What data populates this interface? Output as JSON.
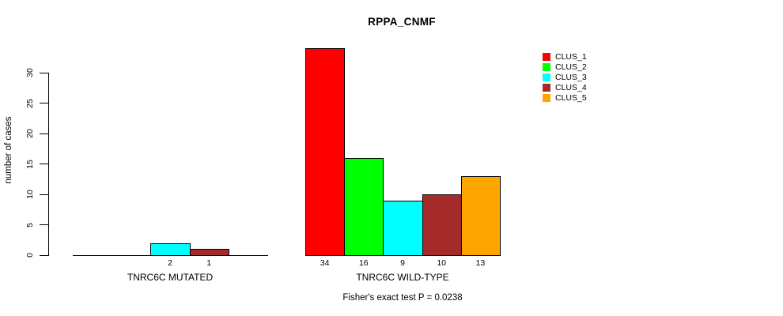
{
  "chart_data": {
    "type": "bar",
    "title": "RPPA_CNMF",
    "ylabel": "number of cases",
    "xlabel": "",
    "ylim": [
      0,
      34
    ],
    "yticks": [
      0,
      5,
      10,
      15,
      20,
      25,
      30
    ],
    "grid": false,
    "legend_position": "top-right",
    "series": [
      {
        "name": "CLUS_1",
        "color": "#ff0000"
      },
      {
        "name": "CLUS_2",
        "color": "#00ff00"
      },
      {
        "name": "CLUS_3",
        "color": "#00ffff"
      },
      {
        "name": "CLUS_4",
        "color": "#a52a2a"
      },
      {
        "name": "CLUS_5",
        "color": "#ffa500"
      }
    ],
    "groups": [
      {
        "label": "TNRC6C MUTATED",
        "values": [
          0,
          0,
          2,
          1,
          0
        ]
      },
      {
        "label": "TNRC6C WILD-TYPE",
        "values": [
          34,
          16,
          9,
          10,
          13
        ]
      }
    ],
    "footnote": "Fisher's exact test P = 0.0238"
  },
  "colors": {
    "axis": "#000000",
    "text": "#000000",
    "background": "#ffffff"
  }
}
